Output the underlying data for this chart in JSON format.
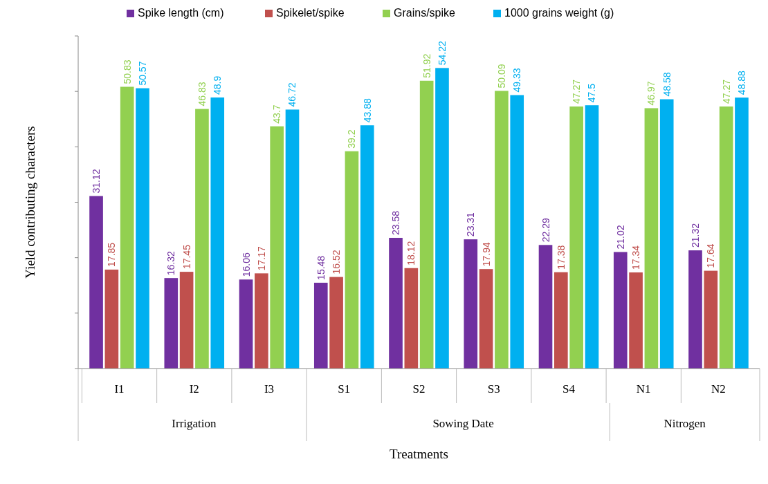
{
  "chart_data": {
    "type": "bar",
    "xlabel": "Treatments",
    "ylabel": "Yield contributing characters",
    "categories": [
      "I1",
      "I2",
      "I3",
      "S1",
      "S2",
      "S3",
      "S4",
      "N1",
      "N2"
    ],
    "series": [
      {
        "name": "Spike length (cm)",
        "color": "#7030a0",
        "values": [
          31.12,
          16.32,
          16.06,
          15.48,
          23.58,
          23.31,
          22.29,
          21.02,
          21.32
        ]
      },
      {
        "name": "Spikelet/spike",
        "color": "#c0504d",
        "values": [
          17.85,
          17.45,
          17.17,
          16.52,
          18.12,
          17.94,
          17.38,
          17.34,
          17.64
        ]
      },
      {
        "name": "Grains/spike",
        "color": "#92d050",
        "values": [
          50.83,
          46.83,
          43.7,
          39.2,
          51.92,
          50.09,
          47.27,
          46.97,
          47.27
        ]
      },
      {
        "name": "1000 grains weight (g)",
        "color": "#00b0f0",
        "values": [
          50.57,
          48.9,
          46.72,
          43.88,
          54.22,
          49.33,
          47.5,
          48.58,
          48.88
        ]
      }
    ],
    "ylim": [
      0,
      60
    ],
    "yticks": [
      {
        "value": 0,
        "label": null
      },
      {
        "value": 10,
        "label": null
      },
      {
        "value": 20,
        "label": null
      },
      {
        "value": 30,
        "label": null
      },
      {
        "value": 40,
        "label": null
      },
      {
        "value": 50,
        "label": null
      },
      {
        "value": 60,
        "label": null
      }
    ],
    "tick_labels": "x",
    "data_labels": true,
    "legend": "top",
    "grid": false,
    "annotations": [
      "Irrigation",
      "Sowing Date",
      "Nitrogen"
    ]
  }
}
